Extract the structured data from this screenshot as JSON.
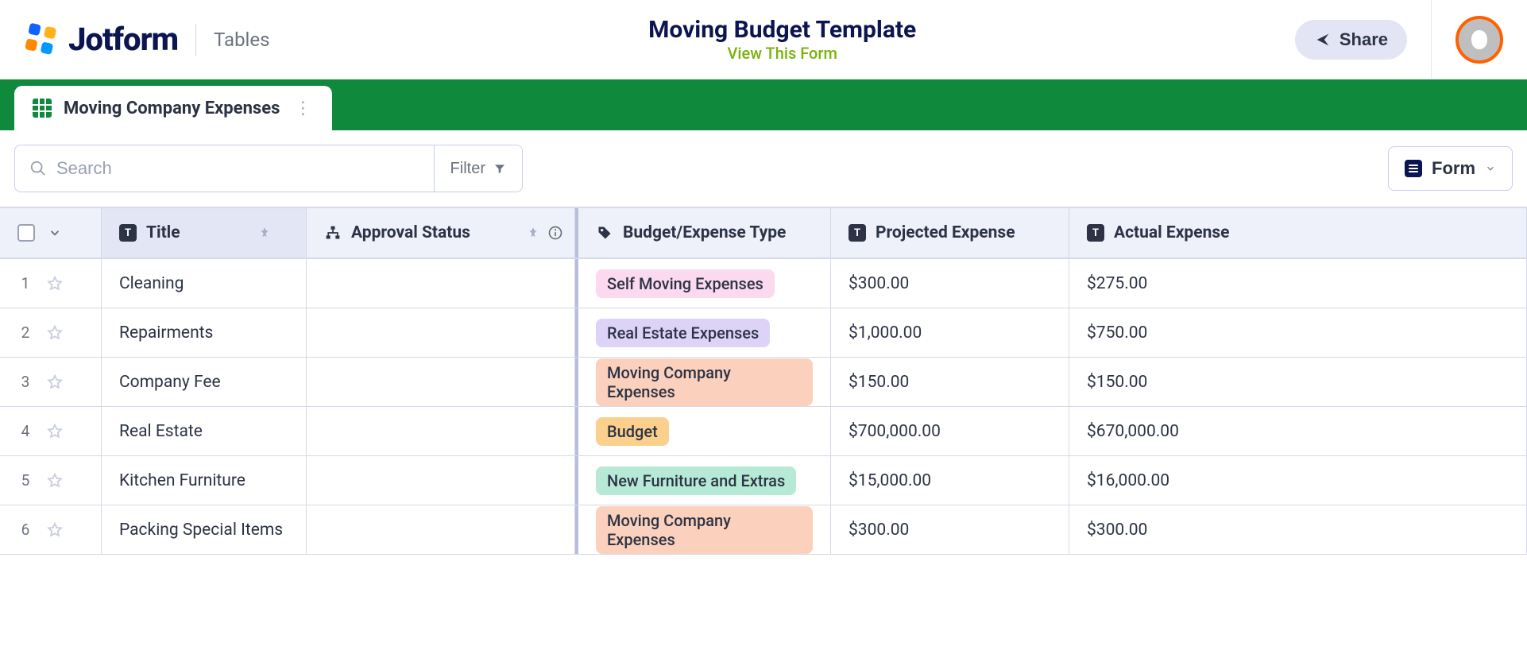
{
  "header": {
    "logo_text": "Jotform",
    "section": "Tables",
    "title": "Moving Budget Template",
    "view_form": "View This Form",
    "share": "Share"
  },
  "tab": {
    "label": "Moving Company Expenses"
  },
  "toolbar": {
    "search_placeholder": "Search",
    "filter": "Filter",
    "form": "Form"
  },
  "columns": {
    "title": "Title",
    "approval": "Approval Status",
    "type": "Budget/Expense Type",
    "projected": "Projected Expense",
    "actual": "Actual Expense"
  },
  "tag_colors": {
    "Self Moving Expenses": "#fbd9ef",
    "Real Estate Expenses": "#ddd3f7",
    "Moving Company Expenses": "#fbd1bd",
    "Budget": "#fbcf8c",
    "New Furniture and Extras": "#b7ead6"
  },
  "rows": [
    {
      "n": "1",
      "title": "Cleaning",
      "type": "Self Moving Expenses",
      "projected": "$300.00",
      "actual": "$275.00"
    },
    {
      "n": "2",
      "title": "Repairments",
      "type": "Real Estate Expenses",
      "projected": "$1,000.00",
      "actual": "$750.00"
    },
    {
      "n": "3",
      "title": "Company Fee",
      "type": "Moving Company Expenses",
      "projected": "$150.00",
      "actual": "$150.00"
    },
    {
      "n": "4",
      "title": "Real Estate",
      "type": "Budget",
      "projected": "$700,000.00",
      "actual": "$670,000.00"
    },
    {
      "n": "5",
      "title": "Kitchen Furniture",
      "type": "New Furniture and Extras",
      "projected": "$15,000.00",
      "actual": "$16,000.00"
    },
    {
      "n": "6",
      "title": "Packing Special Items",
      "type": "Moving Company Expenses",
      "projected": "$300.00",
      "actual": "$300.00"
    }
  ]
}
